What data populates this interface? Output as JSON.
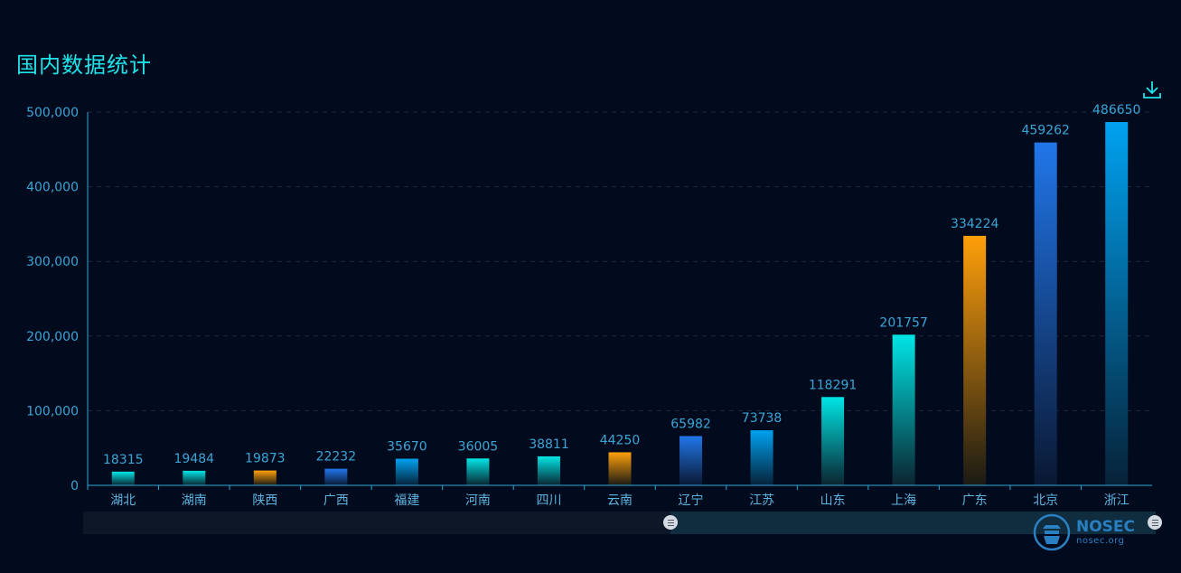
{
  "title": "国内数据统计",
  "toolbox": {
    "download_icon": "download-icon"
  },
  "logo": {
    "name": "NOSEC",
    "url": "nosec.org"
  },
  "colors": {
    "background": "#020b1d",
    "title": "#1ee3e8",
    "axis": "#2aa7d8",
    "cyan": "#00e5e5",
    "orange": "#ff9f0a",
    "blue": "#2176ea",
    "sky": "#00a2f0"
  },
  "chart_data": {
    "type": "bar",
    "title": "国内数据统计",
    "categories": [
      "湖北",
      "湖南",
      "陕西",
      "广西",
      "福建",
      "河南",
      "四川",
      "云南",
      "辽宁",
      "江苏",
      "山东",
      "上海",
      "广东",
      "北京",
      "浙江"
    ],
    "values": [
      18315,
      19484,
      19873,
      22232,
      35670,
      36005,
      38811,
      44250,
      65982,
      73738,
      118291,
      201757,
      334224,
      459262,
      486650
    ],
    "bar_colors": [
      "cyan",
      "cyan",
      "orange",
      "blue",
      "sky",
      "cyan",
      "cyan",
      "orange",
      "blue",
      "sky",
      "cyan",
      "cyan",
      "orange",
      "blue",
      "sky"
    ],
    "ylim": [
      0,
      500000
    ],
    "yticks": [
      0,
      100000,
      200000,
      300000,
      400000,
      500000
    ],
    "ytick_labels": [
      "0",
      "100,000",
      "200,000",
      "300,000",
      "400,000",
      "500,000"
    ],
    "grid": "dashed horizontal",
    "legend": "none",
    "data_labels": "top",
    "data_zoom": {
      "start_fraction": 0.55,
      "end_fraction": 1.0
    }
  }
}
